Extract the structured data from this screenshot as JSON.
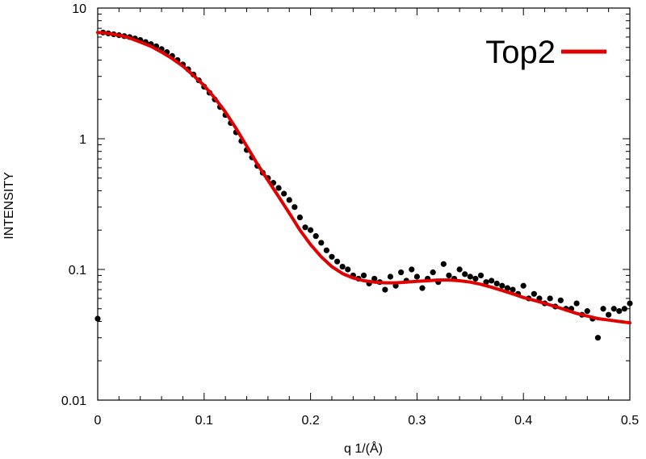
{
  "chart_data": {
    "type": "scatter",
    "title": "",
    "xlabel": "q 1/(Å)",
    "ylabel": "INTENSITY",
    "x_scale": "linear",
    "y_scale": "log",
    "xlim": [
      0,
      0.5
    ],
    "ylim": [
      0.01,
      10
    ],
    "grid": false,
    "legend_position": "top-right",
    "x_ticks": [
      {
        "value": 0,
        "label": "0"
      },
      {
        "value": 0.1,
        "label": "0.1"
      },
      {
        "value": 0.2,
        "label": "0.2"
      },
      {
        "value": 0.3,
        "label": "0.3"
      },
      {
        "value": 0.4,
        "label": "0.4"
      },
      {
        "value": 0.5,
        "label": "0.5"
      }
    ],
    "y_ticks": [
      {
        "value": 0.01,
        "label": "0.01"
      },
      {
        "value": 0.1,
        "label": "0.1"
      },
      {
        "value": 1,
        "label": "1"
      },
      {
        "value": 10,
        "label": "10"
      }
    ],
    "series": [
      {
        "name": "",
        "kind": "points",
        "color": "#000000",
        "points": [
          [
            0.0,
            0.042
          ],
          [
            0.005,
            6.5
          ],
          [
            0.01,
            6.4
          ],
          [
            0.015,
            6.3
          ],
          [
            0.02,
            6.2
          ],
          [
            0.025,
            6.1
          ],
          [
            0.03,
            6.0
          ],
          [
            0.035,
            5.85
          ],
          [
            0.04,
            5.7
          ],
          [
            0.045,
            5.5
          ],
          [
            0.05,
            5.3
          ],
          [
            0.055,
            5.1
          ],
          [
            0.06,
            4.85
          ],
          [
            0.065,
            4.6
          ],
          [
            0.07,
            4.3
          ],
          [
            0.075,
            4.0
          ],
          [
            0.08,
            3.7
          ],
          [
            0.085,
            3.4
          ],
          [
            0.09,
            3.1
          ],
          [
            0.095,
            2.8
          ],
          [
            0.1,
            2.5
          ],
          [
            0.105,
            2.25
          ],
          [
            0.11,
            2.0
          ],
          [
            0.115,
            1.75
          ],
          [
            0.12,
            1.52
          ],
          [
            0.125,
            1.32
          ],
          [
            0.13,
            1.12
          ],
          [
            0.135,
            0.96
          ],
          [
            0.14,
            0.82
          ],
          [
            0.145,
            0.72
          ],
          [
            0.15,
            0.62
          ],
          [
            0.155,
            0.55
          ],
          [
            0.16,
            0.5
          ],
          [
            0.165,
            0.46
          ],
          [
            0.17,
            0.42
          ],
          [
            0.175,
            0.38
          ],
          [
            0.18,
            0.34
          ],
          [
            0.185,
            0.3
          ],
          [
            0.19,
            0.25
          ],
          [
            0.195,
            0.21
          ],
          [
            0.2,
            0.2
          ],
          [
            0.205,
            0.18
          ],
          [
            0.21,
            0.16
          ],
          [
            0.215,
            0.14
          ],
          [
            0.22,
            0.125
          ],
          [
            0.225,
            0.115
          ],
          [
            0.23,
            0.105
          ],
          [
            0.235,
            0.1
          ],
          [
            0.24,
            0.09
          ],
          [
            0.245,
            0.085
          ],
          [
            0.25,
            0.09
          ],
          [
            0.255,
            0.078
          ],
          [
            0.26,
            0.085
          ],
          [
            0.265,
            0.08
          ],
          [
            0.27,
            0.07
          ],
          [
            0.275,
            0.088
          ],
          [
            0.28,
            0.075
          ],
          [
            0.285,
            0.095
          ],
          [
            0.29,
            0.082
          ],
          [
            0.295,
            0.1
          ],
          [
            0.3,
            0.088
          ],
          [
            0.305,
            0.072
          ],
          [
            0.31,
            0.085
          ],
          [
            0.315,
            0.095
          ],
          [
            0.32,
            0.08
          ],
          [
            0.325,
            0.11
          ],
          [
            0.33,
            0.09
          ],
          [
            0.335,
            0.085
          ],
          [
            0.34,
            0.1
          ],
          [
            0.345,
            0.092
          ],
          [
            0.35,
            0.088
          ],
          [
            0.355,
            0.085
          ],
          [
            0.36,
            0.09
          ],
          [
            0.365,
            0.08
          ],
          [
            0.37,
            0.082
          ],
          [
            0.375,
            0.078
          ],
          [
            0.38,
            0.075
          ],
          [
            0.385,
            0.072
          ],
          [
            0.39,
            0.07
          ],
          [
            0.395,
            0.065
          ],
          [
            0.4,
            0.075
          ],
          [
            0.405,
            0.06
          ],
          [
            0.41,
            0.065
          ],
          [
            0.415,
            0.06
          ],
          [
            0.42,
            0.055
          ],
          [
            0.425,
            0.06
          ],
          [
            0.43,
            0.052
          ],
          [
            0.435,
            0.058
          ],
          [
            0.44,
            0.05
          ],
          [
            0.445,
            0.05
          ],
          [
            0.45,
            0.055
          ],
          [
            0.455,
            0.045
          ],
          [
            0.46,
            0.048
          ],
          [
            0.465,
            0.042
          ],
          [
            0.47,
            0.03
          ],
          [
            0.475,
            0.05
          ],
          [
            0.48,
            0.045
          ],
          [
            0.485,
            0.05
          ],
          [
            0.49,
            0.048
          ],
          [
            0.495,
            0.05
          ],
          [
            0.5,
            0.055
          ]
        ]
      },
      {
        "name": "Top2",
        "kind": "line",
        "color": "#e00000",
        "points": [
          [
            0.0,
            6.5
          ],
          [
            0.01,
            6.4
          ],
          [
            0.02,
            6.2
          ],
          [
            0.03,
            5.9
          ],
          [
            0.04,
            5.5
          ],
          [
            0.05,
            5.1
          ],
          [
            0.06,
            4.6
          ],
          [
            0.07,
            4.1
          ],
          [
            0.08,
            3.6
          ],
          [
            0.09,
            3.05
          ],
          [
            0.1,
            2.55
          ],
          [
            0.11,
            2.05
          ],
          [
            0.12,
            1.6
          ],
          [
            0.13,
            1.2
          ],
          [
            0.14,
            0.88
          ],
          [
            0.15,
            0.64
          ],
          [
            0.16,
            0.48
          ],
          [
            0.17,
            0.36
          ],
          [
            0.18,
            0.27
          ],
          [
            0.19,
            0.2
          ],
          [
            0.2,
            0.155
          ],
          [
            0.21,
            0.125
          ],
          [
            0.22,
            0.105
          ],
          [
            0.23,
            0.093
          ],
          [
            0.24,
            0.086
          ],
          [
            0.25,
            0.082
          ],
          [
            0.26,
            0.08
          ],
          [
            0.27,
            0.079
          ],
          [
            0.28,
            0.079
          ],
          [
            0.29,
            0.08
          ],
          [
            0.3,
            0.081
          ],
          [
            0.31,
            0.082
          ],
          [
            0.32,
            0.083
          ],
          [
            0.33,
            0.083
          ],
          [
            0.34,
            0.082
          ],
          [
            0.35,
            0.08
          ],
          [
            0.36,
            0.077
          ],
          [
            0.37,
            0.073
          ],
          [
            0.38,
            0.069
          ],
          [
            0.39,
            0.065
          ],
          [
            0.4,
            0.061
          ],
          [
            0.41,
            0.058
          ],
          [
            0.42,
            0.055
          ],
          [
            0.43,
            0.052
          ],
          [
            0.44,
            0.049
          ],
          [
            0.45,
            0.046
          ],
          [
            0.46,
            0.044
          ],
          [
            0.47,
            0.042
          ],
          [
            0.48,
            0.041
          ],
          [
            0.49,
            0.04
          ],
          [
            0.5,
            0.039
          ]
        ]
      }
    ]
  }
}
